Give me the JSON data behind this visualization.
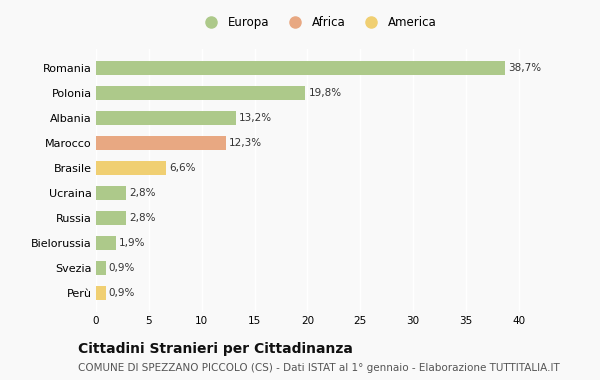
{
  "categories": [
    "Romania",
    "Polonia",
    "Albania",
    "Marocco",
    "Brasile",
    "Ucraina",
    "Russia",
    "Bielorussia",
    "Svezia",
    "Perù"
  ],
  "values": [
    38.7,
    19.8,
    13.2,
    12.3,
    6.6,
    2.8,
    2.8,
    1.9,
    0.9,
    0.9
  ],
  "labels": [
    "38,7%",
    "19,8%",
    "13,2%",
    "12,3%",
    "6,6%",
    "2,8%",
    "2,8%",
    "1,9%",
    "0,9%",
    "0,9%"
  ],
  "colors": [
    "#adc98a",
    "#adc98a",
    "#adc98a",
    "#e8a882",
    "#f0cf72",
    "#adc98a",
    "#adc98a",
    "#adc98a",
    "#adc98a",
    "#f0cf72"
  ],
  "legend_labels": [
    "Europa",
    "Africa",
    "America"
  ],
  "legend_colors": [
    "#adc98a",
    "#e8a882",
    "#f0cf72"
  ],
  "title": "Cittadini Stranieri per Cittadinanza",
  "subtitle": "COMUNE DI SPEZZANO PICCOLO (CS) - Dati ISTAT al 1° gennaio - Elaborazione TUTTITALIA.IT",
  "xlim": [
    0,
    42
  ],
  "xticks": [
    0,
    5,
    10,
    15,
    20,
    25,
    30,
    35,
    40
  ],
  "bg_color": "#f9f9f9",
  "bar_height": 0.55,
  "title_fontsize": 10,
  "subtitle_fontsize": 7.5,
  "label_fontsize": 7.5,
  "ytick_fontsize": 8,
  "xtick_fontsize": 7.5,
  "legend_fontsize": 8.5
}
